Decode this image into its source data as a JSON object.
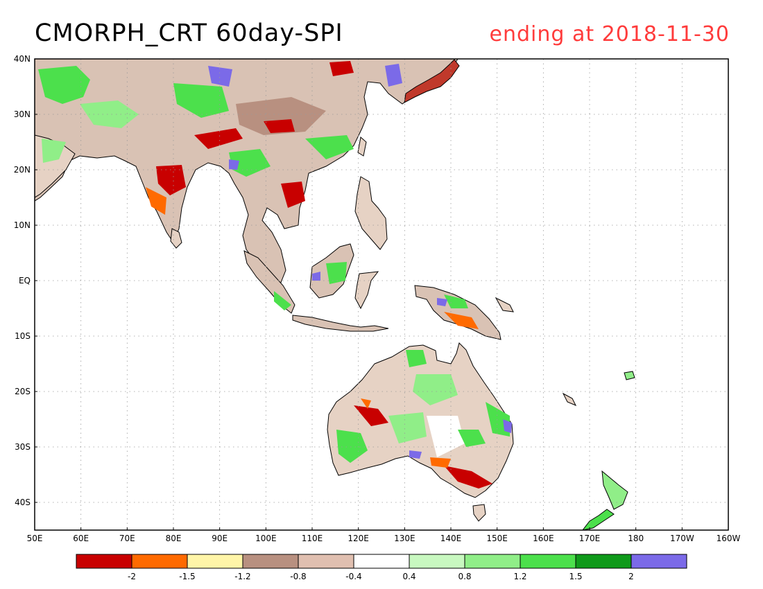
{
  "title": "CMORPH_CRT 60day-SPI",
  "subtitle": "ending at 2018-11-30",
  "colors": {
    "title": "#000000",
    "subtitle": "#ff3b3b"
  },
  "map": {
    "lon_range": [
      50,
      200
    ],
    "lat_range": [
      -45,
      40
    ],
    "lon_ticks": [
      "50E",
      "60E",
      "70E",
      "80E",
      "90E",
      "100E",
      "110E",
      "120E",
      "130E",
      "140E",
      "150E",
      "160E",
      "170E",
      "180",
      "170W",
      "160W"
    ],
    "lat_ticks": [
      "40N",
      "30N",
      "20N",
      "10N",
      "EQ",
      "10S",
      "20S",
      "30S",
      "40S"
    ],
    "lat_tick_values": [
      40,
      30,
      20,
      10,
      0,
      -10,
      -20,
      -30,
      -40
    ],
    "grid": true
  },
  "colorbar": {
    "colors": [
      "#c80000",
      "#ff6a00",
      "#fff5a8",
      "#b89080",
      "#e0bfb0",
      "#ffffff",
      "#c8f8c0",
      "#90ee88",
      "#4ce04c",
      "#0f9a1a",
      "#7b6ae8"
    ],
    "labels": [
      "-2",
      "-1.5",
      "-1.2",
      "-0.8",
      "-0.4",
      "0.4",
      "0.8",
      "1.2",
      "1.5",
      "2"
    ]
  },
  "legend_values": [
    -2,
    -1.5,
    -1.2,
    -0.8,
    -0.4,
    0.4,
    0.8,
    1.2,
    1.5,
    2
  ]
}
